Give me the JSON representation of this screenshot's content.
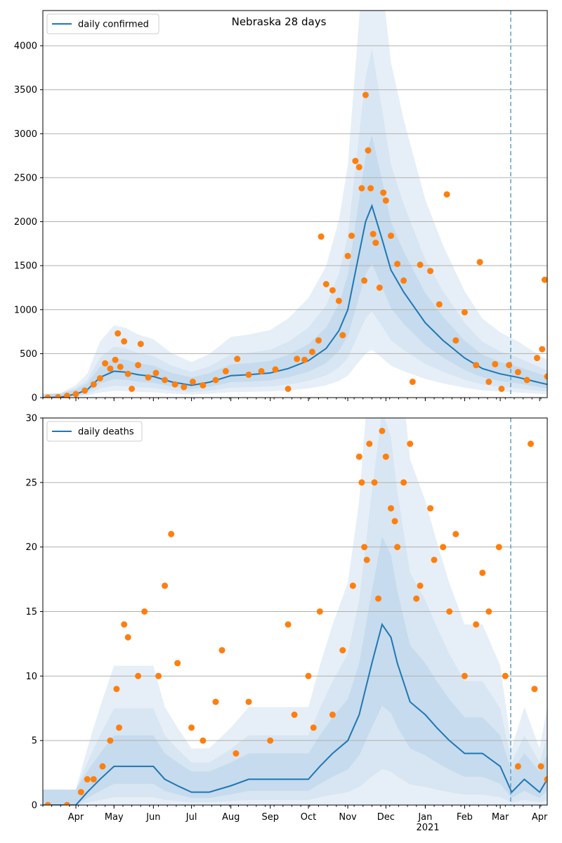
{
  "chart_data": [
    {
      "type": "line",
      "title": "Nebraska 28 days",
      "xlabel": "",
      "ylabel": "",
      "legend": {
        "entries": [
          "daily confirmed"
        ],
        "placement": "top-left"
      },
      "grid": {
        "y": true,
        "x": false
      },
      "ylim": [
        0,
        4400
      ],
      "yticks": [
        0,
        500,
        1000,
        1500,
        2000,
        2500,
        3000,
        3500,
        4000
      ],
      "x_range": [
        "2020-03-06",
        "2021-04-07"
      ],
      "x_tick_labels": [],
      "series": [
        {
          "name": "daily confirmed",
          "kind": "line",
          "color": "#1f77b4",
          "points": [
            [
              "2020-03-06",
              0
            ],
            [
              "2020-03-20",
              5
            ],
            [
              "2020-04-01",
              40
            ],
            [
              "2020-04-10",
              90
            ],
            [
              "2020-04-20",
              230
            ],
            [
              "2020-05-01",
              300
            ],
            [
              "2020-05-10",
              290
            ],
            [
              "2020-05-20",
              260
            ],
            [
              "2020-06-01",
              240
            ],
            [
              "2020-06-15",
              180
            ],
            [
              "2020-07-01",
              140
            ],
            [
              "2020-07-15",
              175
            ],
            [
              "2020-08-01",
              250
            ],
            [
              "2020-08-15",
              260
            ],
            [
              "2020-09-01",
              280
            ],
            [
              "2020-09-15",
              330
            ],
            [
              "2020-10-01",
              420
            ],
            [
              "2020-10-15",
              560
            ],
            [
              "2020-10-25",
              760
            ],
            [
              "2020-11-01",
              1000
            ],
            [
              "2020-11-08",
              1500
            ],
            [
              "2020-11-15",
              2000
            ],
            [
              "2020-11-20",
              2180
            ],
            [
              "2020-11-28",
              1800
            ],
            [
              "2020-12-05",
              1450
            ],
            [
              "2020-12-15",
              1200
            ],
            [
              "2021-01-01",
              850
            ],
            [
              "2021-01-15",
              650
            ],
            [
              "2021-02-01",
              450
            ],
            [
              "2021-02-15",
              330
            ],
            [
              "2021-03-01",
              270
            ],
            [
              "2021-03-15",
              230
            ],
            [
              "2021-04-01",
              170
            ],
            [
              "2021-04-07",
              150
            ]
          ]
        },
        {
          "name": "",
          "kind": "scatter",
          "color": "#ff7f0e",
          "points": [
            [
              "2020-03-10",
              0
            ],
            [
              "2020-03-18",
              5
            ],
            [
              "2020-03-25",
              20
            ],
            [
              "2020-04-01",
              40
            ],
            [
              "2020-04-08",
              80
            ],
            [
              "2020-04-15",
              150
            ],
            [
              "2020-04-20",
              220
            ],
            [
              "2020-04-24",
              390
            ],
            [
              "2020-04-28",
              330
            ],
            [
              "2020-05-02",
              430
            ],
            [
              "2020-05-04",
              730
            ],
            [
              "2020-05-06",
              350
            ],
            [
              "2020-05-09",
              640
            ],
            [
              "2020-05-12",
              270
            ],
            [
              "2020-05-15",
              100
            ],
            [
              "2020-05-20",
              370
            ],
            [
              "2020-05-22",
              610
            ],
            [
              "2020-05-28",
              230
            ],
            [
              "2020-06-03",
              280
            ],
            [
              "2020-06-10",
              200
            ],
            [
              "2020-06-18",
              150
            ],
            [
              "2020-06-25",
              120
            ],
            [
              "2020-07-02",
              180
            ],
            [
              "2020-07-10",
              140
            ],
            [
              "2020-07-20",
              200
            ],
            [
              "2020-07-28",
              300
            ],
            [
              "2020-08-06",
              440
            ],
            [
              "2020-08-15",
              260
            ],
            [
              "2020-08-25",
              300
            ],
            [
              "2020-09-05",
              320
            ],
            [
              "2020-09-15",
              100
            ],
            [
              "2020-09-22",
              440
            ],
            [
              "2020-09-28",
              430
            ],
            [
              "2020-10-04",
              520
            ],
            [
              "2020-10-09",
              650
            ],
            [
              "2020-10-11",
              1830
            ],
            [
              "2020-10-15",
              1290
            ],
            [
              "2020-10-20",
              1220
            ],
            [
              "2020-10-25",
              1100
            ],
            [
              "2020-10-28",
              710
            ],
            [
              "2020-11-01",
              1610
            ],
            [
              "2020-11-04",
              1840
            ],
            [
              "2020-11-07",
              2690
            ],
            [
              "2020-11-10",
              2620
            ],
            [
              "2020-11-12",
              2380
            ],
            [
              "2020-11-14",
              1330
            ],
            [
              "2020-11-15",
              3440
            ],
            [
              "2020-11-17",
              2810
            ],
            [
              "2020-11-19",
              2380
            ],
            [
              "2020-11-21",
              1860
            ],
            [
              "2020-11-23",
              1760
            ],
            [
              "2020-11-26",
              1250
            ],
            [
              "2020-11-29",
              2330
            ],
            [
              "2020-12-01",
              2240
            ],
            [
              "2020-12-05",
              1840
            ],
            [
              "2020-12-10",
              1520
            ],
            [
              "2020-12-15",
              1330
            ],
            [
              "2020-12-22",
              180
            ],
            [
              "2020-12-28",
              1510
            ],
            [
              "2021-01-05",
              1440
            ],
            [
              "2021-01-12",
              1060
            ],
            [
              "2021-01-18",
              2310
            ],
            [
              "2021-01-25",
              650
            ],
            [
              "2021-02-01",
              970
            ],
            [
              "2021-02-10",
              370
            ],
            [
              "2021-02-13",
              1540
            ],
            [
              "2021-02-20",
              180
            ],
            [
              "2021-02-25",
              380
            ],
            [
              "2021-03-02",
              100
            ],
            [
              "2021-03-08",
              370
            ],
            [
              "2021-03-15",
              290
            ],
            [
              "2021-03-22",
              200
            ],
            [
              "2021-03-30",
              450
            ],
            [
              "2021-04-03",
              550
            ],
            [
              "2021-04-05",
              1340
            ],
            [
              "2021-04-07",
              240
            ]
          ]
        }
      ]
    },
    {
      "type": "line",
      "title": "",
      "xlabel": "",
      "ylabel": "",
      "legend": {
        "entries": [
          "daily deaths"
        ],
        "placement": "top-left"
      },
      "grid": {
        "y": true,
        "x": false
      },
      "ylim": [
        0,
        30
      ],
      "yticks": [
        0,
        5,
        10,
        15,
        20,
        25,
        30
      ],
      "x_range": [
        "2020-03-06",
        "2021-04-07"
      ],
      "x_tick_labels": [
        "Apr",
        "May",
        "Jun",
        "Jul",
        "Aug",
        "Sep",
        "Oct",
        "Nov",
        "Dec",
        "Jan",
        "Feb",
        "Mar",
        "Apr"
      ],
      "x_tick_dates": [
        "2020-04-01",
        "2020-05-01",
        "2020-06-01",
        "2020-07-01",
        "2020-08-01",
        "2020-09-01",
        "2020-10-01",
        "2020-11-01",
        "2020-12-01",
        "2021-01-01",
        "2021-02-01",
        "2021-03-01",
        "2021-04-01"
      ],
      "x_year_label": "2021",
      "series": [
        {
          "name": "daily deaths",
          "kind": "line",
          "color": "#1f77b4",
          "points": [
            [
              "2020-03-06",
              0
            ],
            [
              "2020-04-01",
              0
            ],
            [
              "2020-04-10",
              1
            ],
            [
              "2020-04-20",
              2
            ],
            [
              "2020-05-01",
              3
            ],
            [
              "2020-05-15",
              3
            ],
            [
              "2020-06-01",
              3
            ],
            [
              "2020-06-10",
              2
            ],
            [
              "2020-06-20",
              1.5
            ],
            [
              "2020-07-01",
              1
            ],
            [
              "2020-07-15",
              1
            ],
            [
              "2020-08-01",
              1.5
            ],
            [
              "2020-08-15",
              2
            ],
            [
              "2020-09-01",
              2
            ],
            [
              "2020-09-15",
              2
            ],
            [
              "2020-10-01",
              2
            ],
            [
              "2020-10-10",
              3
            ],
            [
              "2020-10-20",
              4
            ],
            [
              "2020-11-01",
              5
            ],
            [
              "2020-11-10",
              7
            ],
            [
              "2020-11-20",
              11
            ],
            [
              "2020-11-28",
              14
            ],
            [
              "2020-12-05",
              13
            ],
            [
              "2020-12-10",
              11
            ],
            [
              "2020-12-20",
              8
            ],
            [
              "2021-01-01",
              7
            ],
            [
              "2021-01-10",
              6
            ],
            [
              "2021-01-20",
              5
            ],
            [
              "2021-02-01",
              4
            ],
            [
              "2021-02-15",
              4
            ],
            [
              "2021-03-01",
              3
            ],
            [
              "2021-03-10",
              1
            ],
            [
              "2021-03-20",
              2
            ],
            [
              "2021-04-01",
              1
            ],
            [
              "2021-04-07",
              2
            ]
          ]
        },
        {
          "name": "",
          "kind": "scatter",
          "color": "#ff7f0e",
          "points": [
            [
              "2020-03-10",
              0
            ],
            [
              "2020-03-25",
              0
            ],
            [
              "2020-04-05",
              1
            ],
            [
              "2020-04-10",
              2
            ],
            [
              "2020-04-15",
              2
            ],
            [
              "2020-04-22",
              3
            ],
            [
              "2020-04-28",
              5
            ],
            [
              "2020-05-03",
              9
            ],
            [
              "2020-05-05",
              6
            ],
            [
              "2020-05-09",
              14
            ],
            [
              "2020-05-12",
              13
            ],
            [
              "2020-05-20",
              10
            ],
            [
              "2020-05-25",
              15
            ],
            [
              "2020-06-05",
              10
            ],
            [
              "2020-06-10",
              17
            ],
            [
              "2020-06-15",
              21
            ],
            [
              "2020-06-20",
              11
            ],
            [
              "2020-07-01",
              6
            ],
            [
              "2020-07-10",
              5
            ],
            [
              "2020-07-20",
              8
            ],
            [
              "2020-07-25",
              12
            ],
            [
              "2020-08-05",
              4
            ],
            [
              "2020-08-15",
              8
            ],
            [
              "2020-09-01",
              5
            ],
            [
              "2020-09-15",
              14
            ],
            [
              "2020-09-20",
              7
            ],
            [
              "2020-10-01",
              10
            ],
            [
              "2020-10-05",
              6
            ],
            [
              "2020-10-10",
              15
            ],
            [
              "2020-10-20",
              7
            ],
            [
              "2020-10-28",
              12
            ],
            [
              "2020-11-05",
              17
            ],
            [
              "2020-11-10",
              27
            ],
            [
              "2020-11-12",
              25
            ],
            [
              "2020-11-14",
              20
            ],
            [
              "2020-11-16",
              19
            ],
            [
              "2020-11-18",
              28
            ],
            [
              "2020-11-22",
              25
            ],
            [
              "2020-11-25",
              16
            ],
            [
              "2020-11-28",
              29
            ],
            [
              "2020-12-01",
              27
            ],
            [
              "2020-12-05",
              23
            ],
            [
              "2020-12-08",
              22
            ],
            [
              "2020-12-10",
              20
            ],
            [
              "2020-12-15",
              25
            ],
            [
              "2020-12-20",
              28
            ],
            [
              "2020-12-25",
              16
            ],
            [
              "2020-12-28",
              17
            ],
            [
              "2021-01-05",
              23
            ],
            [
              "2021-01-08",
              19
            ],
            [
              "2021-01-15",
              20
            ],
            [
              "2021-01-20",
              15
            ],
            [
              "2021-01-25",
              21
            ],
            [
              "2021-02-01",
              10
            ],
            [
              "2021-02-10",
              14
            ],
            [
              "2021-02-15",
              18
            ],
            [
              "2021-02-20",
              15
            ],
            [
              "2021-02-28",
              20
            ],
            [
              "2021-03-05",
              10
            ],
            [
              "2021-03-15",
              3
            ],
            [
              "2021-03-25",
              28
            ],
            [
              "2021-03-28",
              9
            ],
            [
              "2021-04-02",
              3
            ],
            [
              "2021-04-07",
              2
            ]
          ]
        }
      ]
    }
  ]
}
